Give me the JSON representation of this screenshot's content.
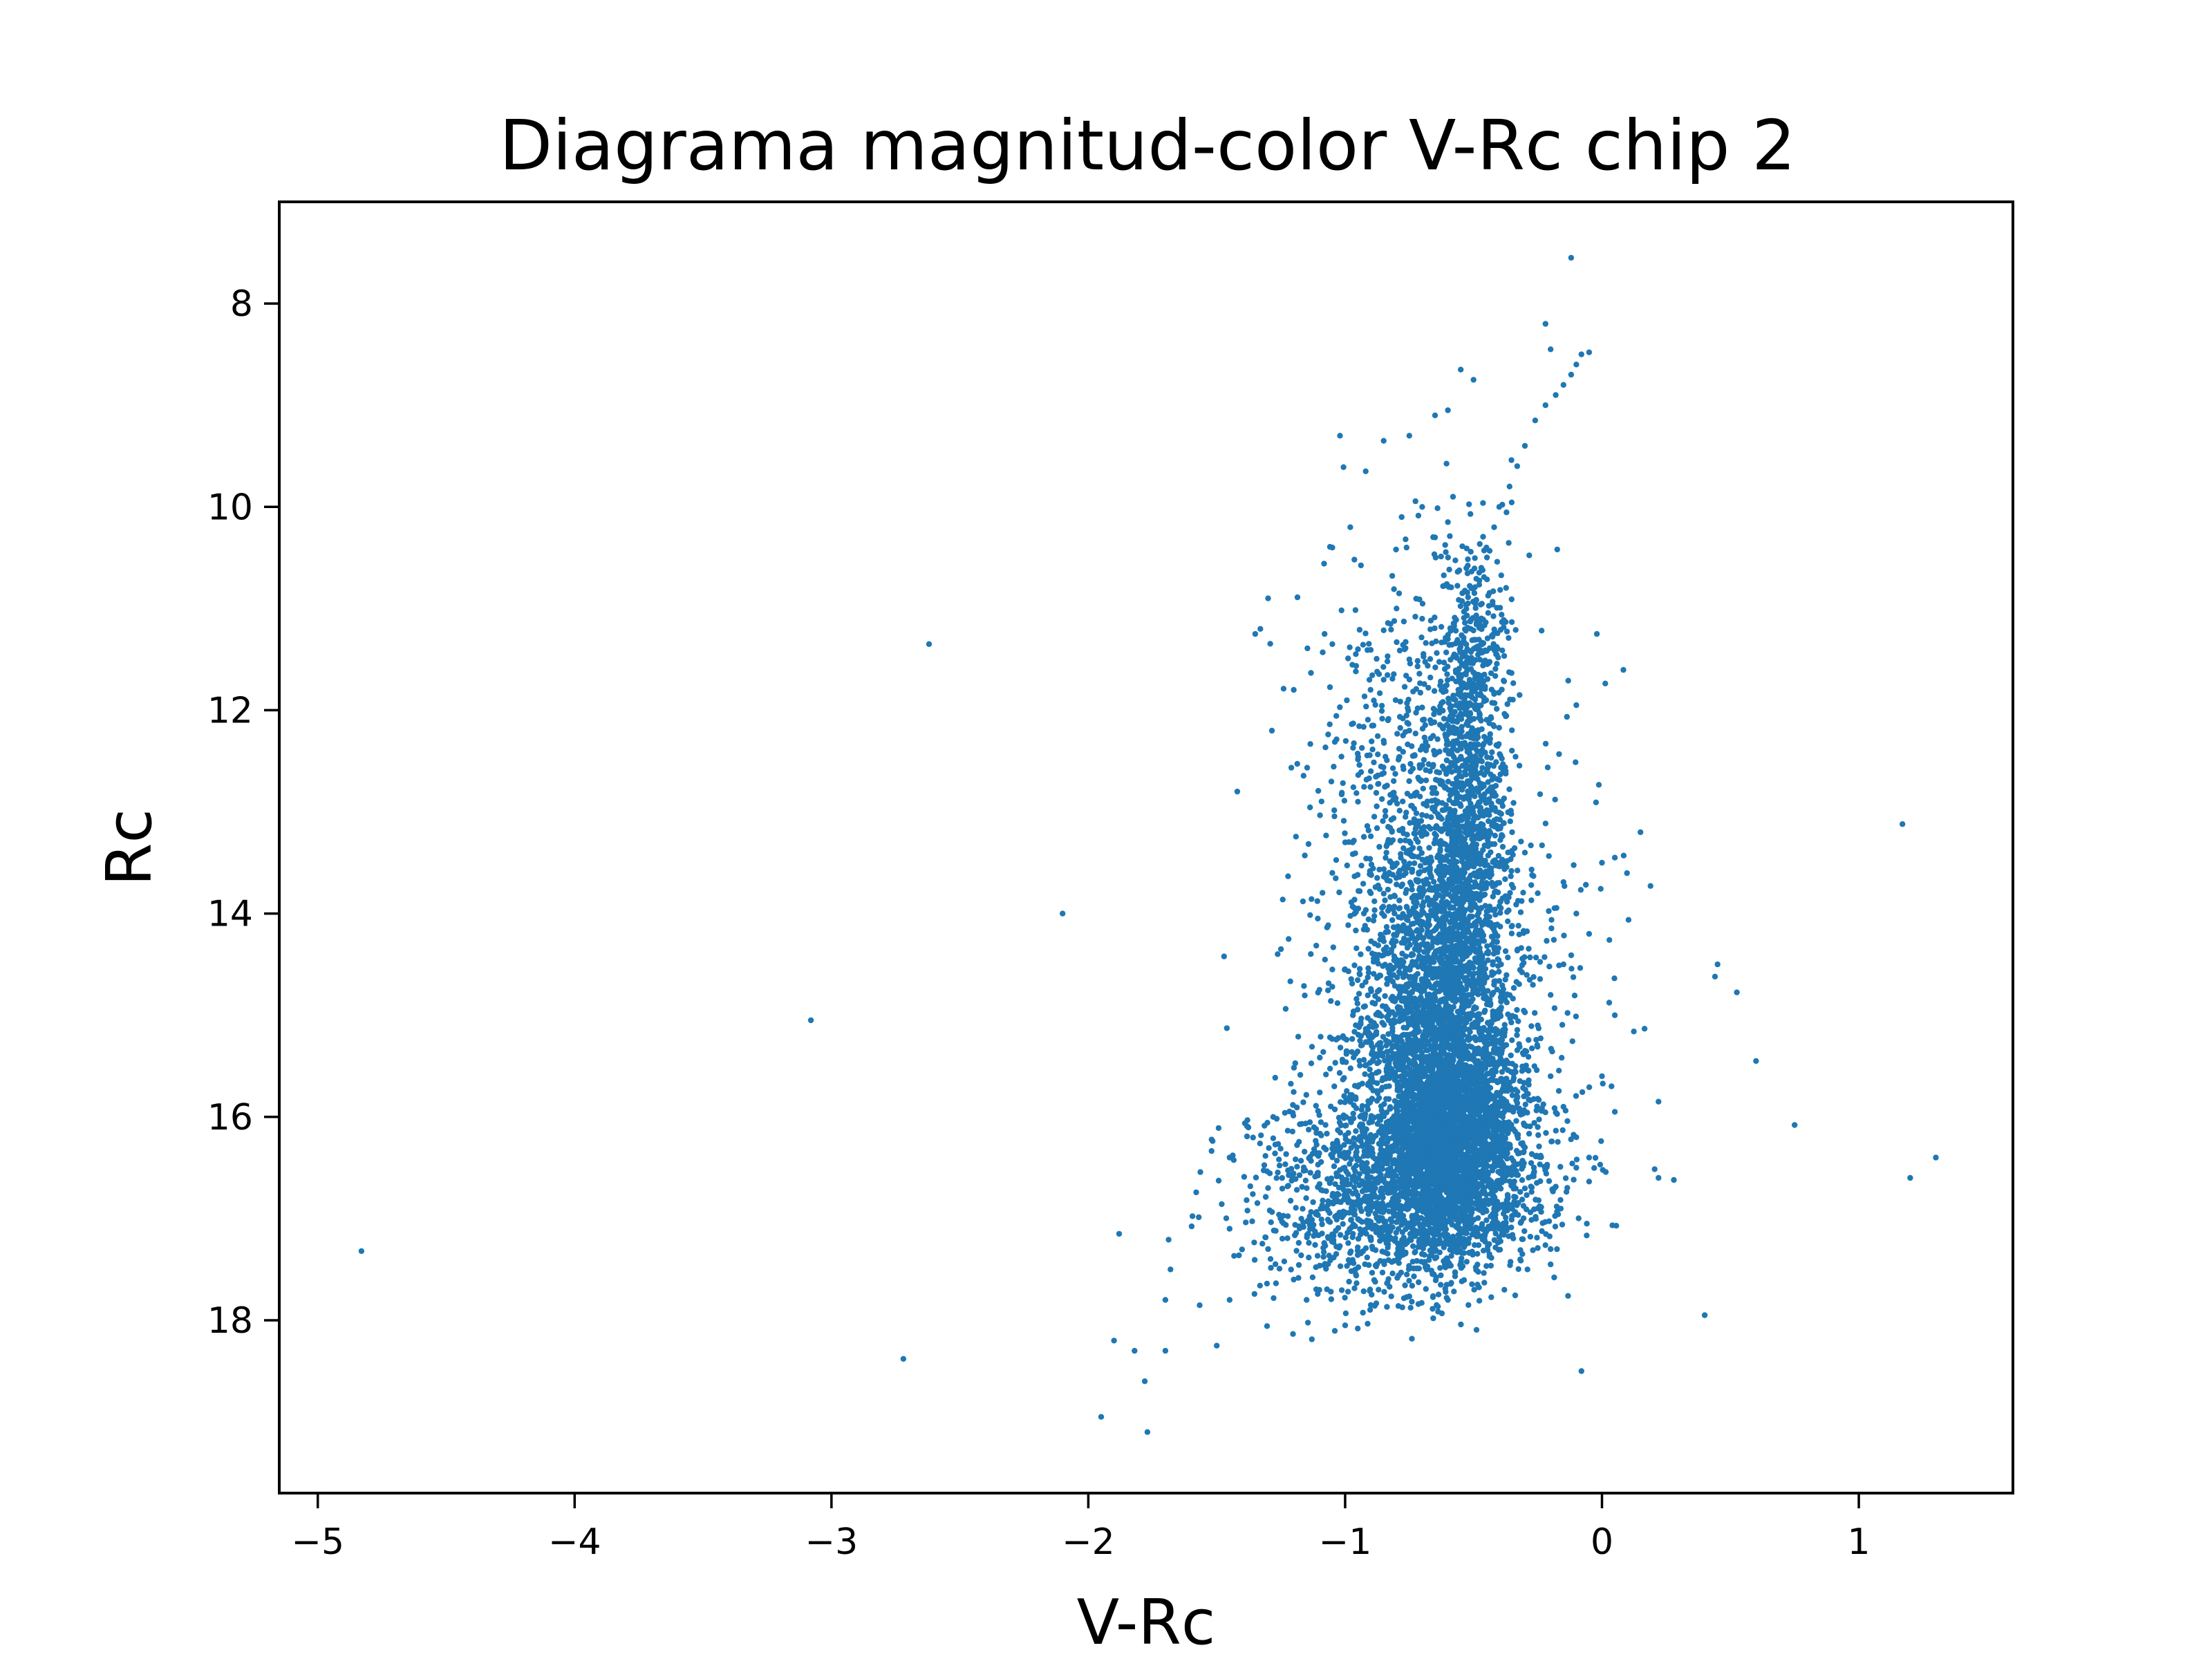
{
  "chart_data": {
    "type": "scatter",
    "title": "Diagrama magnitud-color V-Rc chip 2",
    "xlabel": "V-Rc",
    "ylabel": "Rc",
    "xlim": [
      -5.15,
      1.6
    ],
    "ylim": [
      19.7,
      7.0
    ],
    "y_inverted": true,
    "xticks": [
      -5,
      -4,
      -3,
      -2,
      -1,
      0,
      1
    ],
    "xtick_labels": [
      "−5",
      "−4",
      "−3",
      "−2",
      "−1",
      "0",
      "1"
    ],
    "yticks": [
      8,
      10,
      12,
      14,
      16,
      18
    ],
    "ytick_labels": [
      "8",
      "10",
      "12",
      "14",
      "16",
      "18"
    ],
    "grid": false,
    "legend": "none",
    "marker_color": "#1f77b4",
    "series": [
      {
        "points": [
          [
            -0.12,
            7.55
          ],
          [
            -0.22,
            8.2
          ],
          [
            -0.2,
            8.45
          ],
          [
            -0.08,
            8.5
          ],
          [
            -0.05,
            8.48
          ],
          [
            -0.1,
            8.6
          ],
          [
            -0.12,
            8.7
          ],
          [
            -0.15,
            8.8
          ],
          [
            -0.18,
            8.9
          ],
          [
            -0.22,
            9.0
          ],
          [
            -0.26,
            9.15
          ],
          [
            -0.3,
            9.4
          ],
          [
            -0.33,
            9.6
          ],
          [
            -0.36,
            9.8
          ],
          [
            -0.4,
            10.0
          ],
          [
            -0.42,
            10.2
          ],
          [
            -0.45,
            10.4
          ],
          [
            -0.47,
            10.6
          ],
          [
            -0.5,
            10.8
          ],
          [
            -0.55,
            8.65
          ],
          [
            -0.5,
            8.75
          ],
          [
            -0.6,
            9.05
          ],
          [
            -0.65,
            9.1
          ],
          [
            -0.75,
            9.3
          ],
          [
            -0.85,
            9.35
          ],
          [
            -1.02,
            9.3
          ],
          [
            -0.58,
            9.9
          ],
          [
            -0.6,
            10.15
          ],
          [
            -0.65,
            10.3
          ],
          [
            -0.92,
            9.65
          ],
          [
            -1.05,
            10.4
          ],
          [
            -0.98,
            10.2
          ],
          [
            -0.78,
            10.1
          ],
          [
            -0.7,
            10.0
          ],
          [
            -0.02,
            11.25
          ],
          [
            -0.1,
            11.95
          ],
          [
            -1.3,
            10.9
          ],
          [
            -1.33,
            11.2
          ],
          [
            -1.35,
            11.25
          ],
          [
            -1.2,
            11.8
          ],
          [
            -1.08,
            11.25
          ],
          [
            -1.05,
            11.35
          ],
          [
            -0.95,
            11.4
          ],
          [
            -1.42,
            12.8
          ],
          [
            -2.62,
            11.35
          ],
          [
            -2.1,
            14.0
          ],
          [
            -3.08,
            15.05
          ],
          [
            -2.72,
            18.38
          ],
          [
            -4.83,
            17.32
          ],
          [
            -1.95,
            18.95
          ],
          [
            -1.77,
            19.1
          ],
          [
            -1.9,
            18.2
          ],
          [
            -1.82,
            18.3
          ],
          [
            -1.78,
            18.6
          ],
          [
            -1.7,
            18.3
          ],
          [
            -1.7,
            17.8
          ],
          [
            -1.68,
            17.5
          ],
          [
            -1.88,
            17.15
          ],
          [
            -1.5,
            18.25
          ],
          [
            -1.45,
            17.8
          ],
          [
            -0.08,
            18.5
          ],
          [
            0.4,
            17.95
          ],
          [
            0.22,
            15.85
          ],
          [
            0.22,
            16.6
          ],
          [
            0.28,
            16.62
          ],
          [
            0.45,
            14.5
          ],
          [
            0.44,
            14.62
          ],
          [
            0.6,
            15.45
          ],
          [
            0.75,
            16.08
          ],
          [
            1.17,
            13.12
          ],
          [
            1.2,
            16.6
          ],
          [
            1.3,
            16.4
          ],
          [
            0.0,
            13.5
          ],
          [
            0.05,
            13.45
          ],
          [
            0.15,
            13.2
          ],
          [
            0.05,
            15.0
          ],
          [
            0.0,
            15.6
          ],
          [
            0.05,
            15.95
          ],
          [
            -0.1,
            16.2
          ],
          [
            -0.05,
            16.4
          ],
          [
            -0.1,
            16.5
          ],
          [
            -0.25,
            16.9
          ],
          [
            -0.2,
            17.3
          ],
          [
            -0.2,
            17.45
          ],
          [
            -1.1,
            14.75
          ],
          [
            -1.05,
            14.55
          ],
          [
            -1.25,
            14.35
          ],
          [
            -1.22,
            14.25
          ],
          [
            -1.28,
            16.0
          ],
          [
            -1.45,
            16.4
          ],
          [
            -1.3,
            16.7
          ],
          [
            -1.45,
            17.1
          ],
          [
            -1.3,
            17.3
          ],
          [
            -1.2,
            17.6
          ],
          [
            -1.15,
            17.8
          ],
          [
            -1.0,
            18.05
          ],
          [
            -0.9,
            17.85
          ],
          [
            -0.6,
            17.8
          ],
          [
            -0.52,
            17.85
          ],
          [
            -0.38,
            17.7
          ],
          [
            -0.1,
            14.0
          ],
          [
            -0.05,
            14.2
          ],
          [
            -0.15,
            14.5
          ],
          [
            -0.2,
            14.8
          ],
          [
            -0.25,
            15.1
          ],
          [
            -0.3,
            15.35
          ],
          [
            -0.2,
            15.6
          ],
          [
            -0.15,
            15.9
          ],
          [
            -0.25,
            16.1
          ],
          [
            -0.3,
            16.3
          ],
          [
            -0.4,
            12.9
          ],
          [
            -0.35,
            13.2
          ],
          [
            -0.3,
            13.4
          ],
          [
            -0.45,
            13.6
          ],
          [
            -0.25,
            13.8
          ],
          [
            -0.9,
            12.6
          ],
          [
            -0.95,
            12.9
          ],
          [
            -1.0,
            13.3
          ],
          [
            -1.05,
            13.6
          ],
          [
            -0.9,
            13.8
          ],
          [
            -0.8,
            11.0
          ],
          [
            -0.7,
            11.1
          ],
          [
            -0.6,
            11.3
          ],
          [
            -0.75,
            11.5
          ],
          [
            -0.85,
            11.7
          ],
          [
            -0.55,
            11.8
          ],
          [
            -0.65,
            12.0
          ],
          [
            -0.75,
            12.2
          ],
          [
            -0.85,
            12.3
          ],
          [
            -0.6,
            12.4
          ]
        ]
      }
    ],
    "clusters": [
      {
        "cx": -0.6,
        "cy": 16.2,
        "sx": 0.14,
        "sy": 0.6,
        "n": 2600
      },
      {
        "cx": -0.62,
        "cy": 14.8,
        "sx": 0.12,
        "sy": 0.9,
        "n": 1500
      },
      {
        "cx": -0.52,
        "cy": 13.0,
        "sx": 0.08,
        "sy": 0.9,
        "n": 900
      },
      {
        "cx": -0.72,
        "cy": 16.7,
        "sx": 0.28,
        "sy": 0.45,
        "n": 1100
      },
      {
        "cx": -0.7,
        "cy": 15.2,
        "sx": 0.22,
        "sy": 0.9,
        "n": 700
      },
      {
        "cx": -0.5,
        "cy": 11.4,
        "sx": 0.07,
        "sy": 0.55,
        "n": 260
      },
      {
        "cx": -0.78,
        "cy": 12.4,
        "sx": 0.17,
        "sy": 1.0,
        "n": 380
      },
      {
        "cx": -0.55,
        "cy": 14.3,
        "sx": 0.3,
        "sy": 1.3,
        "n": 420
      },
      {
        "cx": -1.0,
        "cy": 16.9,
        "sx": 0.22,
        "sy": 0.5,
        "n": 350
      }
    ]
  }
}
